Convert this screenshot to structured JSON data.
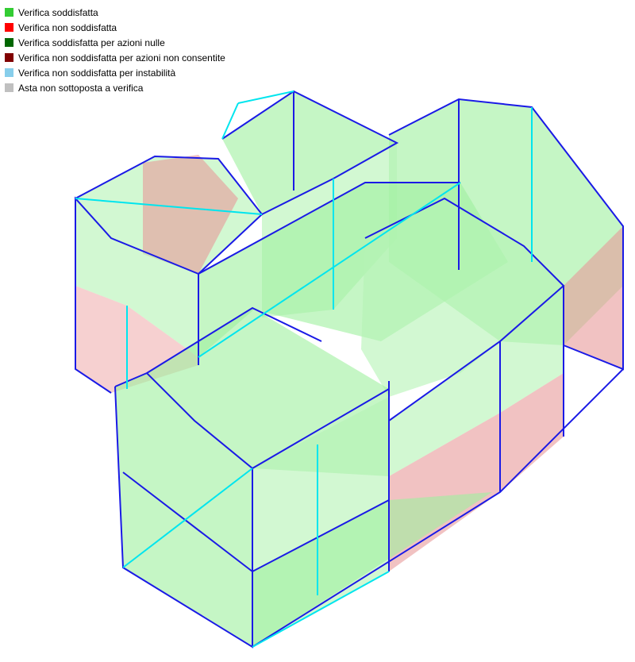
{
  "legend": [
    {
      "label": "Verifica soddisfatta",
      "color": "#33cc33"
    },
    {
      "label": "Verifica non soddisfatta",
      "color": "#ff0000"
    },
    {
      "label": "Verifica soddisfatta per azioni nulle",
      "color": "#006600"
    },
    {
      "label": "Verifica non soddisfatta per azioni non consentite",
      "color": "#800000"
    },
    {
      "label": "Verifica non soddisfatta per instabilità",
      "color": "#87ceeb"
    },
    {
      "label": "Asta non sottoposta a verifica",
      "color": "#c0c0c0"
    }
  ],
  "colors": {
    "edge": "#1a1ae6",
    "member": "#00e5ee",
    "pass_fill": "#9ef09e",
    "fail_fill": "#f0a0a0",
    "unchecked_fill": "#d0d0d0"
  }
}
